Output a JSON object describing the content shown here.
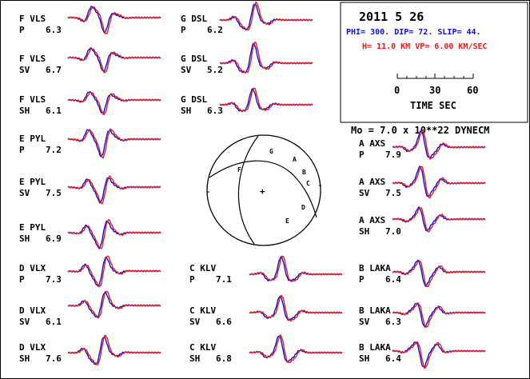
{
  "colors": {
    "observed": "#e21b1b",
    "synthetic": "#1010d8",
    "ink": "#000000",
    "background": "#ffffff"
  },
  "info_box": {
    "date": "2011   5 26",
    "mechanism": "PHI= 300. DIP= 72. SLIP=  44.",
    "depth_velocity": "H= 11.0 KM  VP= 6.00 KM/SEC",
    "scale_ticks": [
      "0",
      "30",
      "60"
    ],
    "scale_label": "TIME   SEC"
  },
  "moment": "Mo =  7.0 x 10**22 DYNECM",
  "focal_sphere": {
    "center_mark": "+",
    "station_letters": [
      "G",
      "A",
      "B",
      "C",
      "D",
      "E",
      "F"
    ]
  },
  "traces": [
    {
      "station": "F VLS",
      "phase": "P",
      "value": "6.3"
    },
    {
      "station": "F VLS",
      "phase": "SV",
      "value": "6.7"
    },
    {
      "station": "F VLS",
      "phase": "SH",
      "value": "6.1"
    },
    {
      "station": "E PYL",
      "phase": "P",
      "value": "7.2"
    },
    {
      "station": "E PYL",
      "phase": "SV",
      "value": "7.5"
    },
    {
      "station": "E PYL",
      "phase": "SH",
      "value": "6.9"
    },
    {
      "station": "D VLX",
      "phase": "P",
      "value": "7.3"
    },
    {
      "station": "D VLX",
      "phase": "SV",
      "value": "6.1"
    },
    {
      "station": "D VLX",
      "phase": "SH",
      "value": "7.6"
    },
    {
      "station": "G DSL",
      "phase": "P",
      "value": "6.2"
    },
    {
      "station": "G DSL",
      "phase": "SV",
      "value": "5.2"
    },
    {
      "station": "G DSL",
      "phase": "SH",
      "value": "6.3"
    },
    {
      "station": "C KLV",
      "phase": "P",
      "value": "7.1"
    },
    {
      "station": "C KLV",
      "phase": "SV",
      "value": "6.6"
    },
    {
      "station": "C KLV",
      "phase": "SH",
      "value": "6.8"
    },
    {
      "station": "A AXS",
      "phase": "P",
      "value": "7.9"
    },
    {
      "station": "A AXS",
      "phase": "SV",
      "value": "7.5"
    },
    {
      "station": "A AXS",
      "phase": "SH",
      "value": "7.0"
    },
    {
      "station": "B LAKA",
      "phase": "P",
      "value": "6.4"
    },
    {
      "station": "B LAKA",
      "phase": "SV",
      "value": "6.3"
    },
    {
      "station": "B LAKA",
      "phase": "SH",
      "value": "6.4"
    }
  ]
}
